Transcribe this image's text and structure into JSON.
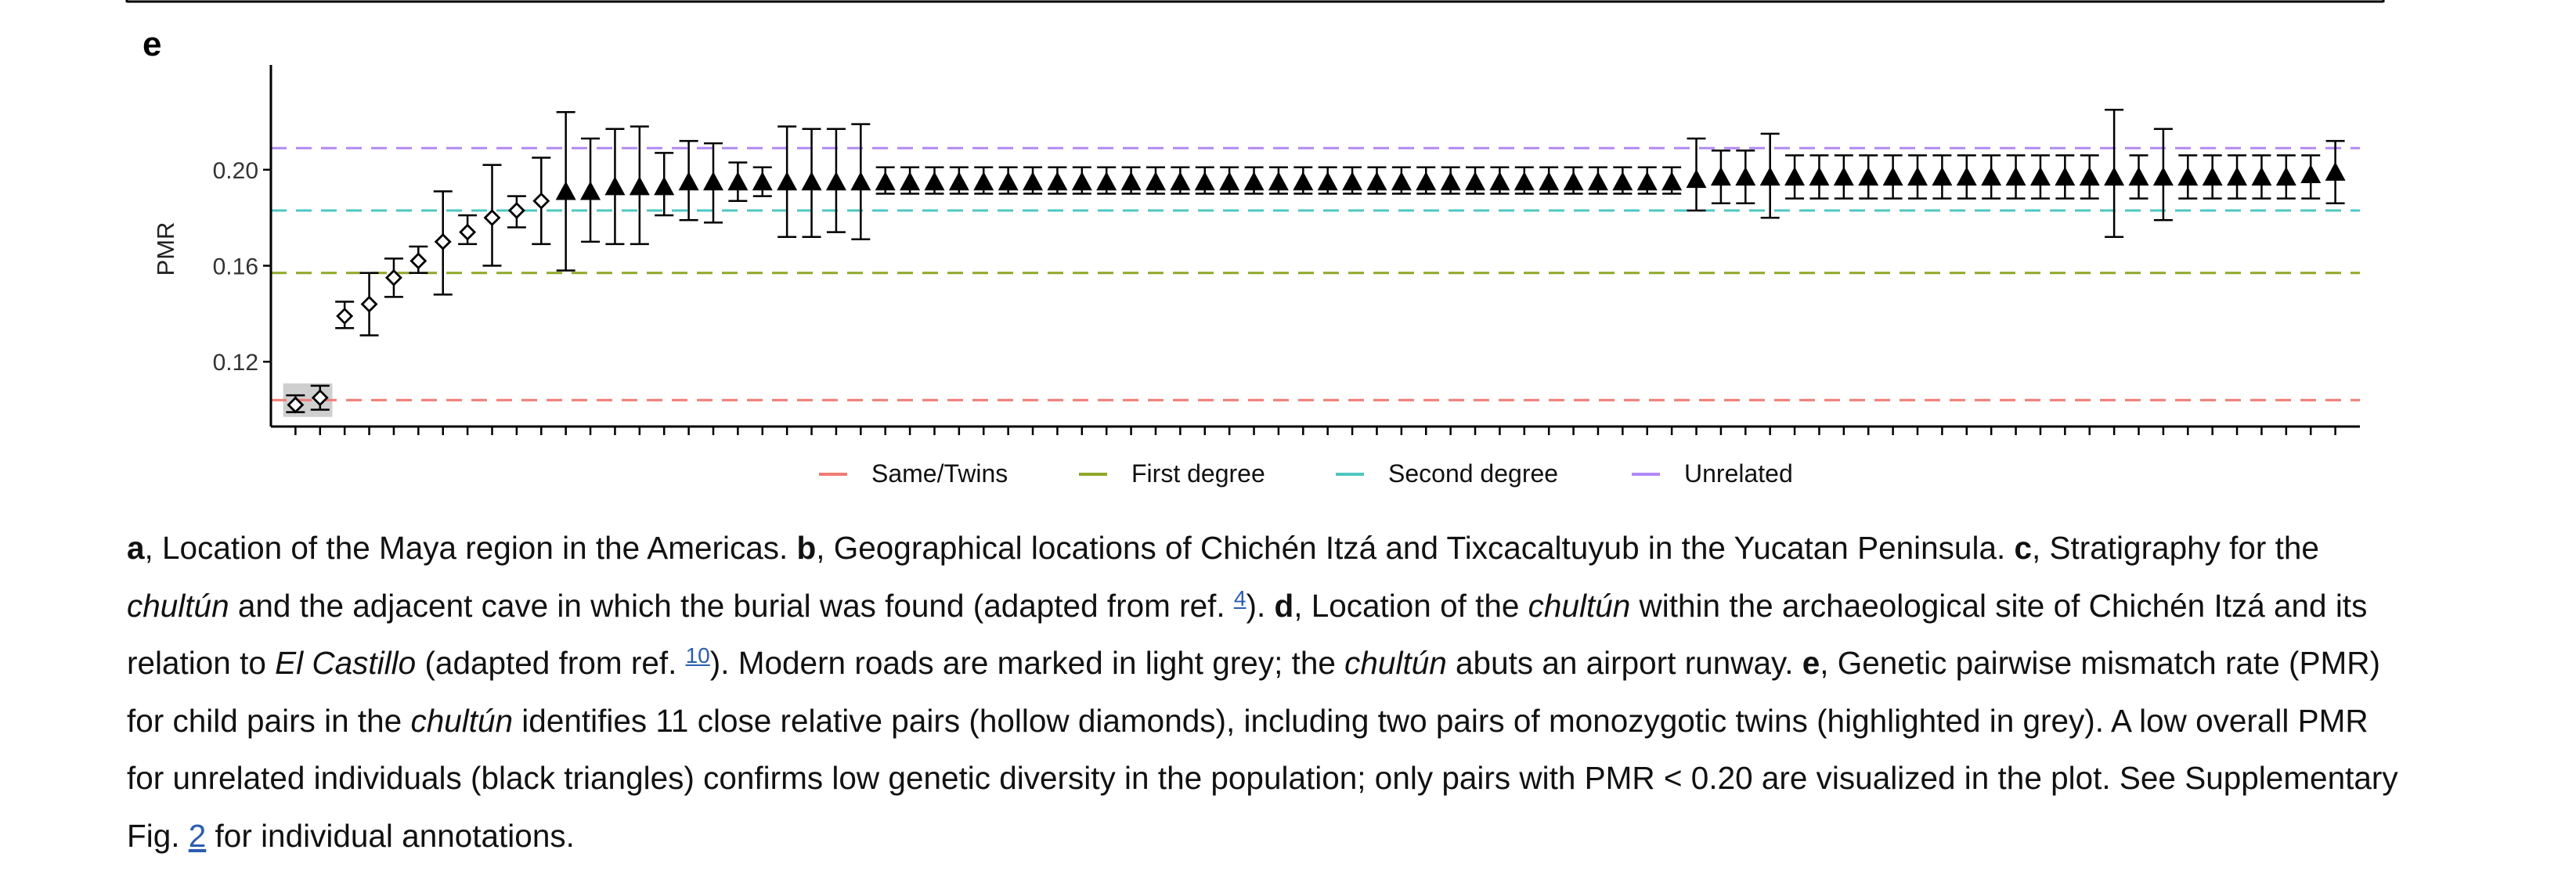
{
  "panel_label": "e",
  "chart_data": {
    "type": "scatter",
    "ylabel": "PMR",
    "ylim": [
      0.093,
      0.243
    ],
    "yticks": [
      0.12,
      0.16,
      0.2
    ],
    "ytick_labels": [
      "0.12",
      "0.16",
      "0.20"
    ],
    "grid": false,
    "legend_position": "bottom",
    "reference_lines": [
      {
        "name": "Same/Twins",
        "value": 0.104,
        "color": "#f07c74"
      },
      {
        "name": "First degree",
        "value": 0.157,
        "color": "#8fa828"
      },
      {
        "name": "Second degree",
        "value": 0.183,
        "color": "#4ec7c0"
      },
      {
        "name": "Unrelated",
        "value": 0.209,
        "color": "#b18af4"
      }
    ],
    "highlight_region": {
      "x": [
        1,
        2
      ],
      "label": "monozygotic twins"
    },
    "series": [
      {
        "marker": "hollow-diamond",
        "x": [
          1,
          2,
          3,
          4,
          5,
          6,
          7,
          8,
          9,
          10,
          11
        ],
        "y": [
          0.102,
          0.105,
          0.139,
          0.144,
          0.155,
          0.162,
          0.17,
          0.174,
          0.18,
          0.183,
          0.187
        ],
        "lo": [
          0.099,
          0.1,
          0.134,
          0.131,
          0.147,
          0.157,
          0.148,
          0.169,
          0.16,
          0.176,
          0.169
        ],
        "hi": [
          0.106,
          0.11,
          0.145,
          0.157,
          0.163,
          0.168,
          0.191,
          0.181,
          0.202,
          0.189,
          0.205
        ]
      },
      {
        "marker": "filled-triangle",
        "x": [
          12,
          13,
          14,
          15,
          16,
          17,
          18,
          19,
          20,
          21,
          22,
          23,
          24,
          25,
          26,
          27,
          28,
          29,
          30,
          31,
          32,
          33,
          34,
          35,
          36,
          37,
          38,
          39,
          40,
          41,
          42,
          43,
          44,
          45,
          46,
          47,
          48,
          49,
          50,
          51,
          52,
          53,
          54,
          55,
          56,
          57,
          58,
          59,
          60,
          61,
          62,
          63,
          64,
          65,
          66,
          67,
          68,
          69,
          70,
          71,
          72,
          73,
          74,
          75,
          76,
          77,
          78,
          79,
          80,
          81,
          82,
          83,
          84
        ],
        "y": [
          0.191,
          0.191,
          0.193,
          0.193,
          0.193,
          0.195,
          0.195,
          0.195,
          0.195,
          0.195,
          0.195,
          0.195,
          0.195,
          0.195,
          0.195,
          0.195,
          0.195,
          0.195,
          0.195,
          0.195,
          0.195,
          0.195,
          0.195,
          0.195,
          0.195,
          0.195,
          0.195,
          0.195,
          0.195,
          0.195,
          0.195,
          0.195,
          0.195,
          0.195,
          0.195,
          0.195,
          0.195,
          0.195,
          0.195,
          0.195,
          0.195,
          0.195,
          0.195,
          0.195,
          0.195,
          0.195,
          0.196,
          0.197,
          0.197,
          0.197,
          0.197,
          0.197,
          0.197,
          0.197,
          0.197,
          0.197,
          0.197,
          0.197,
          0.197,
          0.197,
          0.197,
          0.197,
          0.197,
          0.197,
          0.197,
          0.197,
          0.197,
          0.197,
          0.197,
          0.197,
          0.197,
          0.198,
          0.199
        ],
        "lo": [
          0.158,
          0.17,
          0.169,
          0.169,
          0.181,
          0.179,
          0.178,
          0.187,
          0.189,
          0.172,
          0.172,
          0.174,
          0.171,
          0.19,
          0.19,
          0.19,
          0.19,
          0.19,
          0.19,
          0.19,
          0.19,
          0.19,
          0.19,
          0.19,
          0.19,
          0.19,
          0.19,
          0.19,
          0.19,
          0.19,
          0.19,
          0.19,
          0.19,
          0.19,
          0.19,
          0.19,
          0.19,
          0.19,
          0.19,
          0.19,
          0.19,
          0.19,
          0.19,
          0.19,
          0.19,
          0.19,
          0.183,
          0.186,
          0.186,
          0.18,
          0.188,
          0.188,
          0.188,
          0.188,
          0.188,
          0.188,
          0.188,
          0.188,
          0.188,
          0.188,
          0.188,
          0.188,
          0.188,
          0.172,
          0.188,
          0.179,
          0.188,
          0.188,
          0.188,
          0.188,
          0.188,
          0.188,
          0.186
        ],
        "hi": [
          0.224,
          0.213,
          0.217,
          0.218,
          0.207,
          0.212,
          0.211,
          0.203,
          0.201,
          0.218,
          0.217,
          0.217,
          0.219,
          0.201,
          0.201,
          0.201,
          0.201,
          0.201,
          0.201,
          0.201,
          0.201,
          0.201,
          0.201,
          0.201,
          0.201,
          0.201,
          0.201,
          0.201,
          0.201,
          0.201,
          0.201,
          0.201,
          0.201,
          0.201,
          0.201,
          0.201,
          0.201,
          0.201,
          0.201,
          0.201,
          0.201,
          0.201,
          0.201,
          0.201,
          0.201,
          0.201,
          0.213,
          0.208,
          0.208,
          0.215,
          0.206,
          0.206,
          0.206,
          0.206,
          0.206,
          0.206,
          0.206,
          0.206,
          0.206,
          0.206,
          0.206,
          0.206,
          0.206,
          0.225,
          0.206,
          0.217,
          0.206,
          0.206,
          0.206,
          0.206,
          0.206,
          0.206,
          0.212
        ]
      }
    ],
    "xlim": [
      0,
      85
    ]
  },
  "caption": {
    "a_label": "a",
    "a_text": ", Location of the Maya region in the Americas. ",
    "b_label": "b",
    "b_text": ", Geographical locations of Chichén Itzá and Tixcacaltuyub in the Yucatan Peninsula. ",
    "c_label": "c",
    "c_text1": ", Stratigraphy for the ",
    "chultun": "chultún",
    "c_text2": " and the adjacent cave in which the burial was found (adapted from ref. ",
    "ref4": "4",
    "c_text3": "). ",
    "d_label": "d",
    "d_text1": ", Location of the ",
    "d_text2": " within the archaeological site of Chichén Itzá and its relation to ",
    "el_castillo": "El Castillo",
    "d_text3": " (adapted from ref. ",
    "ref10": "10",
    "d_text4": "). Modern roads are marked in light grey; the ",
    "d_text5": " abuts an airport runway. ",
    "e_label": "e",
    "e_text1": ", Genetic pairwise mismatch rate (PMR) for child pairs in the ",
    "e_text2": " identifies 11 close relative pairs (hollow diamonds), including two pairs of monozygotic twins (highlighted in grey). A low overall PMR for unrelated individuals (black triangles) confirms low genetic diversity in the population; only pairs with PMR < 0.20 are visualized in the plot. See Supplementary Fig. ",
    "fig2": "2",
    "e_text3": " for individual annotations."
  }
}
